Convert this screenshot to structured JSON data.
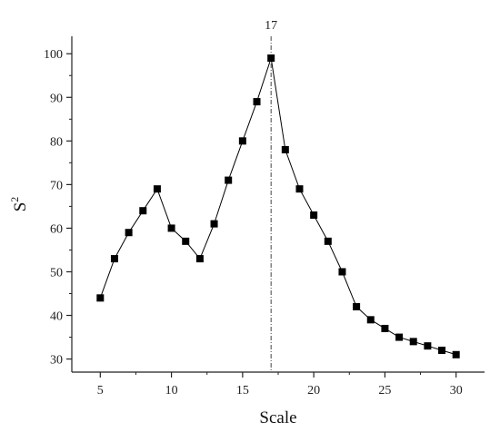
{
  "chart_data": {
    "type": "line",
    "title": "",
    "xlabel": "Scale",
    "ylabel": "S",
    "ylabel_superscript": "2",
    "xlim": [
      3,
      32
    ],
    "ylim": [
      27,
      104
    ],
    "xticks": [
      5,
      10,
      15,
      20,
      25,
      30
    ],
    "yticks": [
      30,
      40,
      50,
      60,
      70,
      80,
      90,
      100
    ],
    "grid": false,
    "legend": "none",
    "marker": "square",
    "color": "#000000",
    "series": [
      {
        "x": [
          5,
          6,
          7,
          8,
          9,
          10,
          11,
          12,
          13,
          14,
          15,
          16,
          17,
          18,
          19,
          20,
          21,
          22,
          23,
          24,
          25,
          26,
          27,
          28,
          29,
          30
        ],
        "values": [
          44,
          53,
          59,
          64,
          69,
          60,
          57,
          53,
          61,
          71,
          80,
          89,
          99,
          78,
          69,
          63,
          57,
          50,
          42,
          39,
          37,
          35,
          34,
          33,
          32,
          31
        ]
      }
    ],
    "annotations": [
      {
        "type": "vline",
        "x": 17,
        "label": "17",
        "style": "dash-dot"
      }
    ]
  }
}
